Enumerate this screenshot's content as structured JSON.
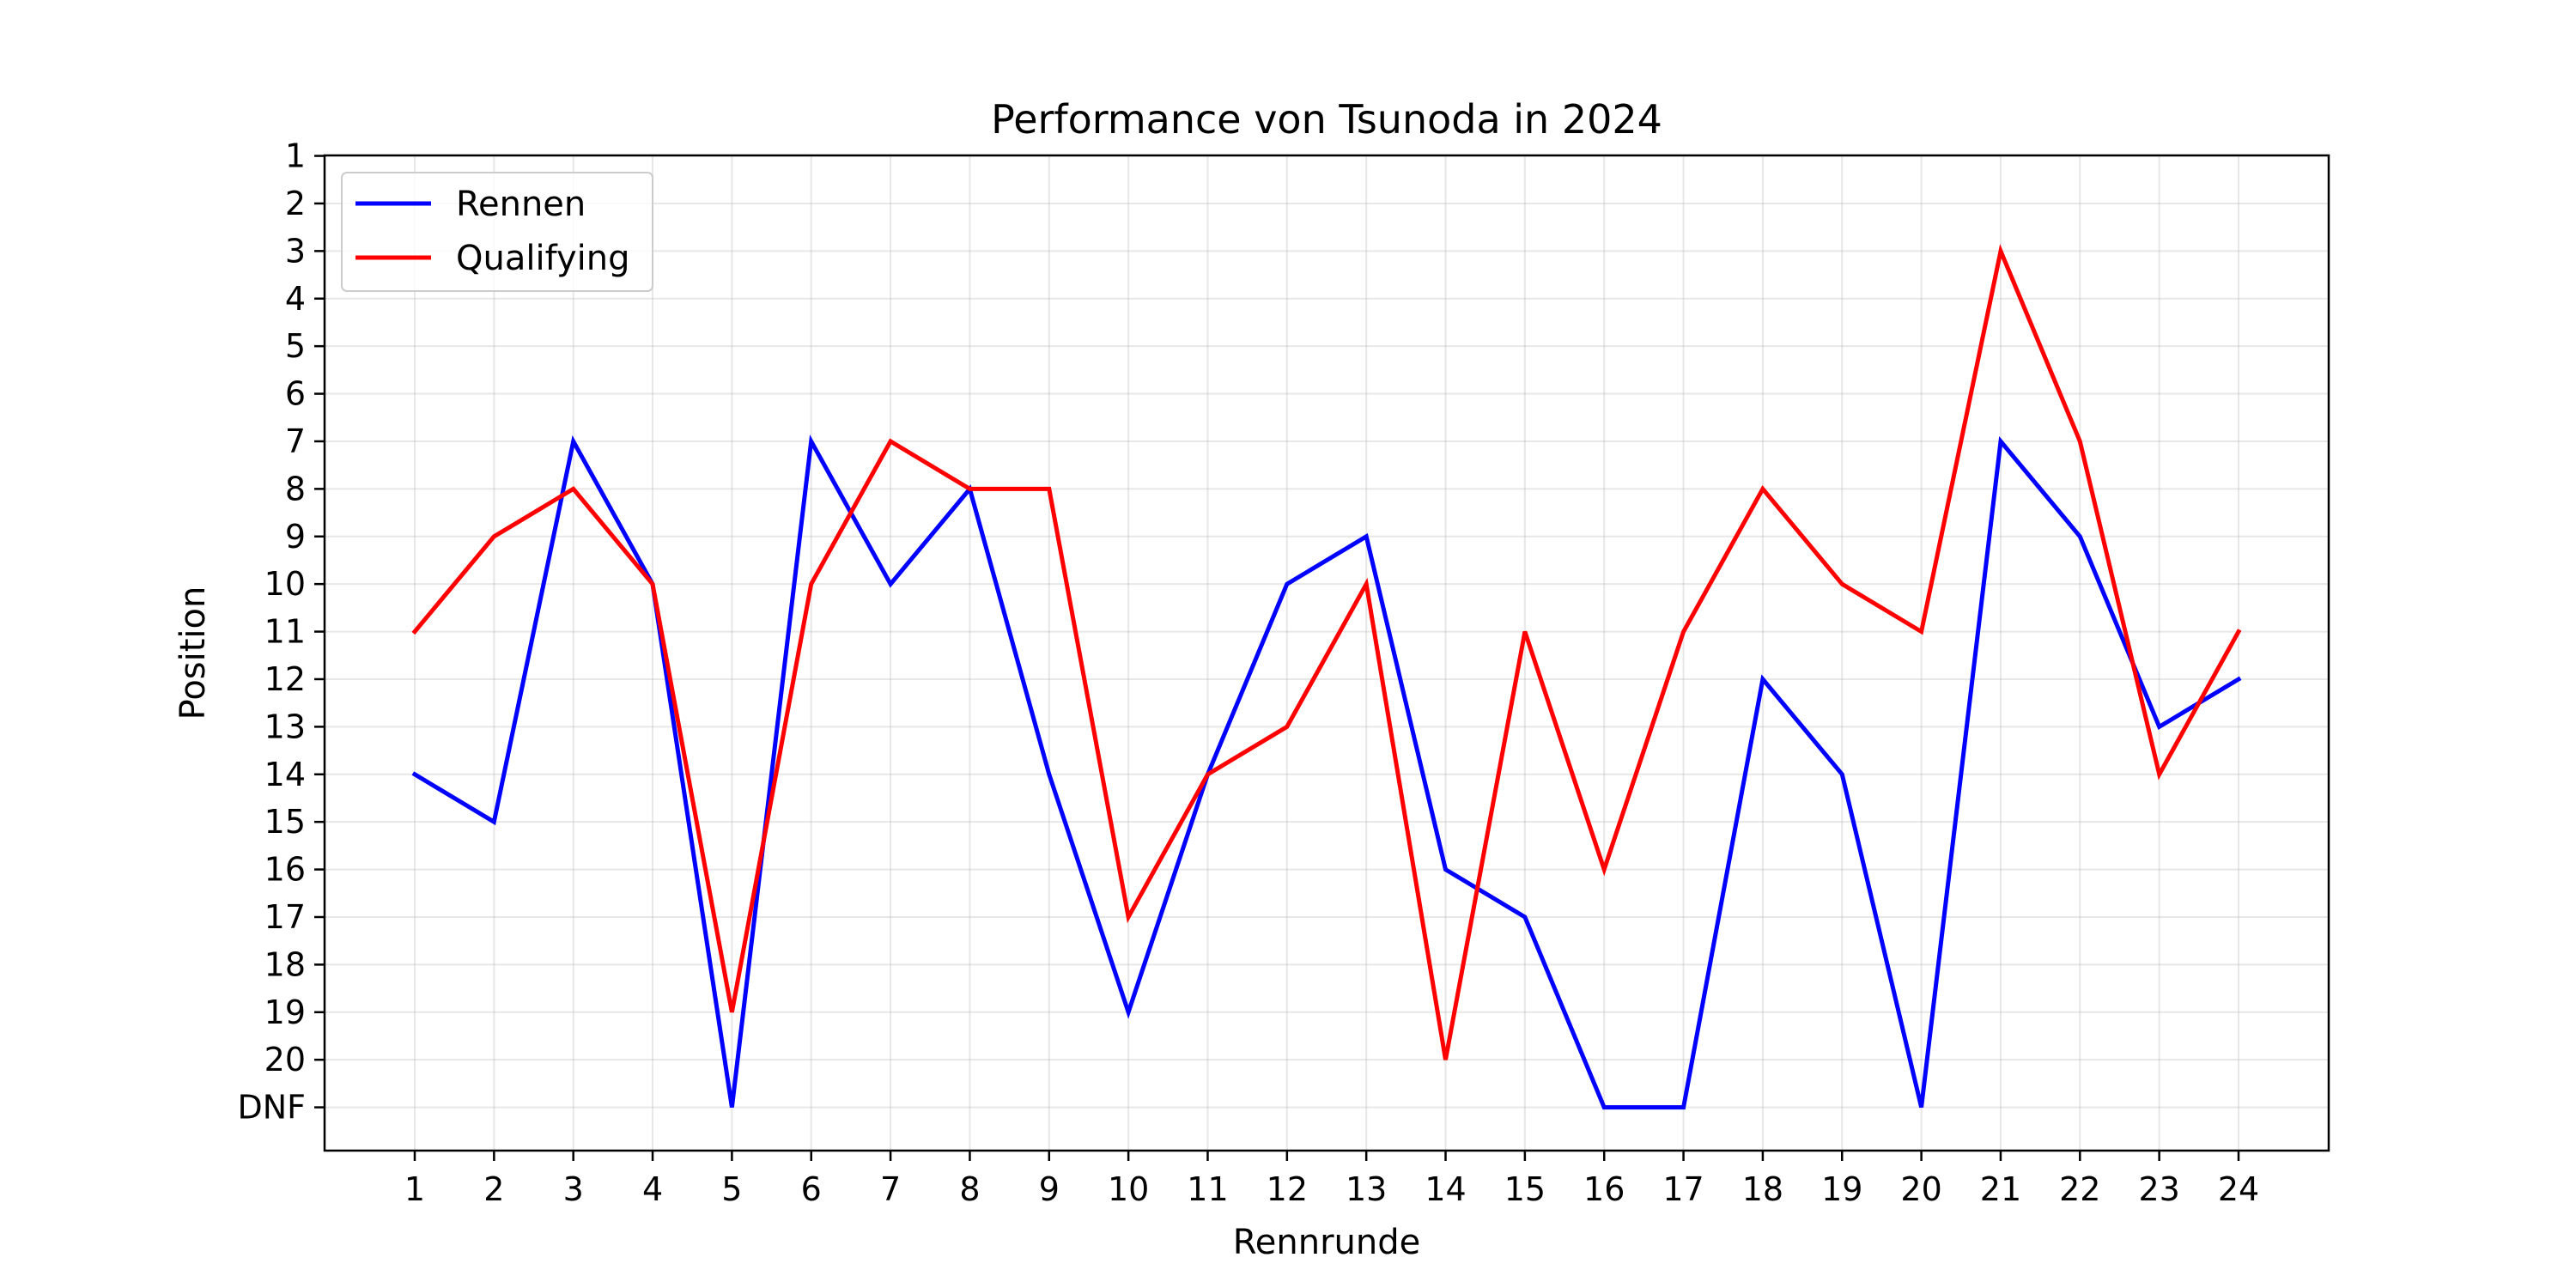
{
  "chart_data": {
    "type": "line",
    "title": "Performance von Tsunoda in 2024",
    "xlabel": "Rennrunde",
    "ylabel": "Position",
    "x": [
      1,
      2,
      3,
      4,
      5,
      6,
      7,
      8,
      9,
      10,
      11,
      12,
      13,
      14,
      15,
      16,
      17,
      18,
      19,
      20,
      21,
      22,
      23,
      24
    ],
    "y_tick_labels": [
      "1",
      "2",
      "3",
      "4",
      "5",
      "6",
      "7",
      "8",
      "9",
      "10",
      "11",
      "12",
      "13",
      "14",
      "15",
      "16",
      "17",
      "18",
      "19",
      "20",
      "DNF"
    ],
    "y_inverted": true,
    "grid": true,
    "legend_position": "upper-left",
    "series": [
      {
        "name": "Rennen",
        "color": "#0000ff",
        "values": [
          "14",
          "15",
          "7",
          "10",
          "DNF",
          "7",
          "10",
          "8",
          "14",
          "19",
          "14",
          "10",
          "9",
          "16",
          "17",
          "DNF",
          "DNF",
          "12",
          "14",
          "DNF",
          "7",
          "9",
          "13",
          "12"
        ]
      },
      {
        "name": "Qualifying",
        "color": "#ff0000",
        "values": [
          "11",
          "9",
          "8",
          "10",
          "19",
          "10",
          "7",
          "8",
          "8",
          "17",
          "14",
          "13",
          "10",
          "20",
          "11",
          "16",
          "11",
          "8",
          "10",
          "11",
          "3",
          "7",
          "14",
          "11"
        ]
      }
    ]
  }
}
